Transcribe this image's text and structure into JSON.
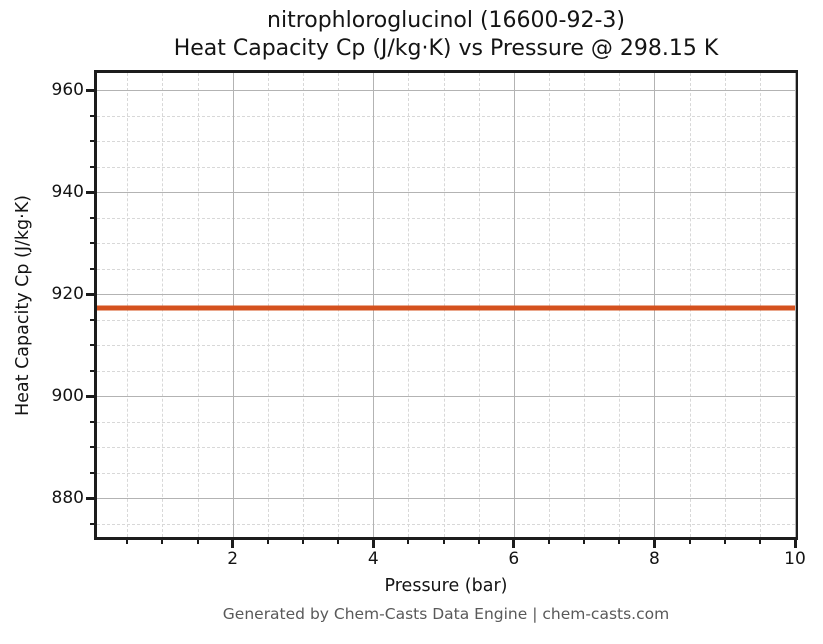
{
  "chart_data": {
    "type": "line",
    "title_line1": "nitrophloroglucinol (16600-92-3)",
    "title_line2": "Heat Capacity Cp (J/kg·K) vs Pressure @ 298.15 K",
    "xlabel": "Pressure (bar)",
    "ylabel": "Heat Capacity Cp (J/kg·K)",
    "xlim": [
      0.07,
      10
    ],
    "ylim": [
      872.4,
      963.4
    ],
    "xticks": [
      2,
      4,
      6,
      8,
      10
    ],
    "yticks": [
      880,
      900,
      920,
      940,
      960
    ],
    "x_minor_step": 0.5,
    "y_minor_step": 5,
    "grid": "major-solid, minor-dashed",
    "legend": "none",
    "series": [
      {
        "name": "Heat Capacity Cp",
        "shape": "constant-horizontal-line",
        "color": "#d4511e",
        "x": [
          0.07,
          10
        ],
        "y": [
          917.4,
          917.4
        ]
      }
    ]
  },
  "footer": {
    "text": "Generated by Chem-Casts Data Engine | chem-casts.com"
  }
}
